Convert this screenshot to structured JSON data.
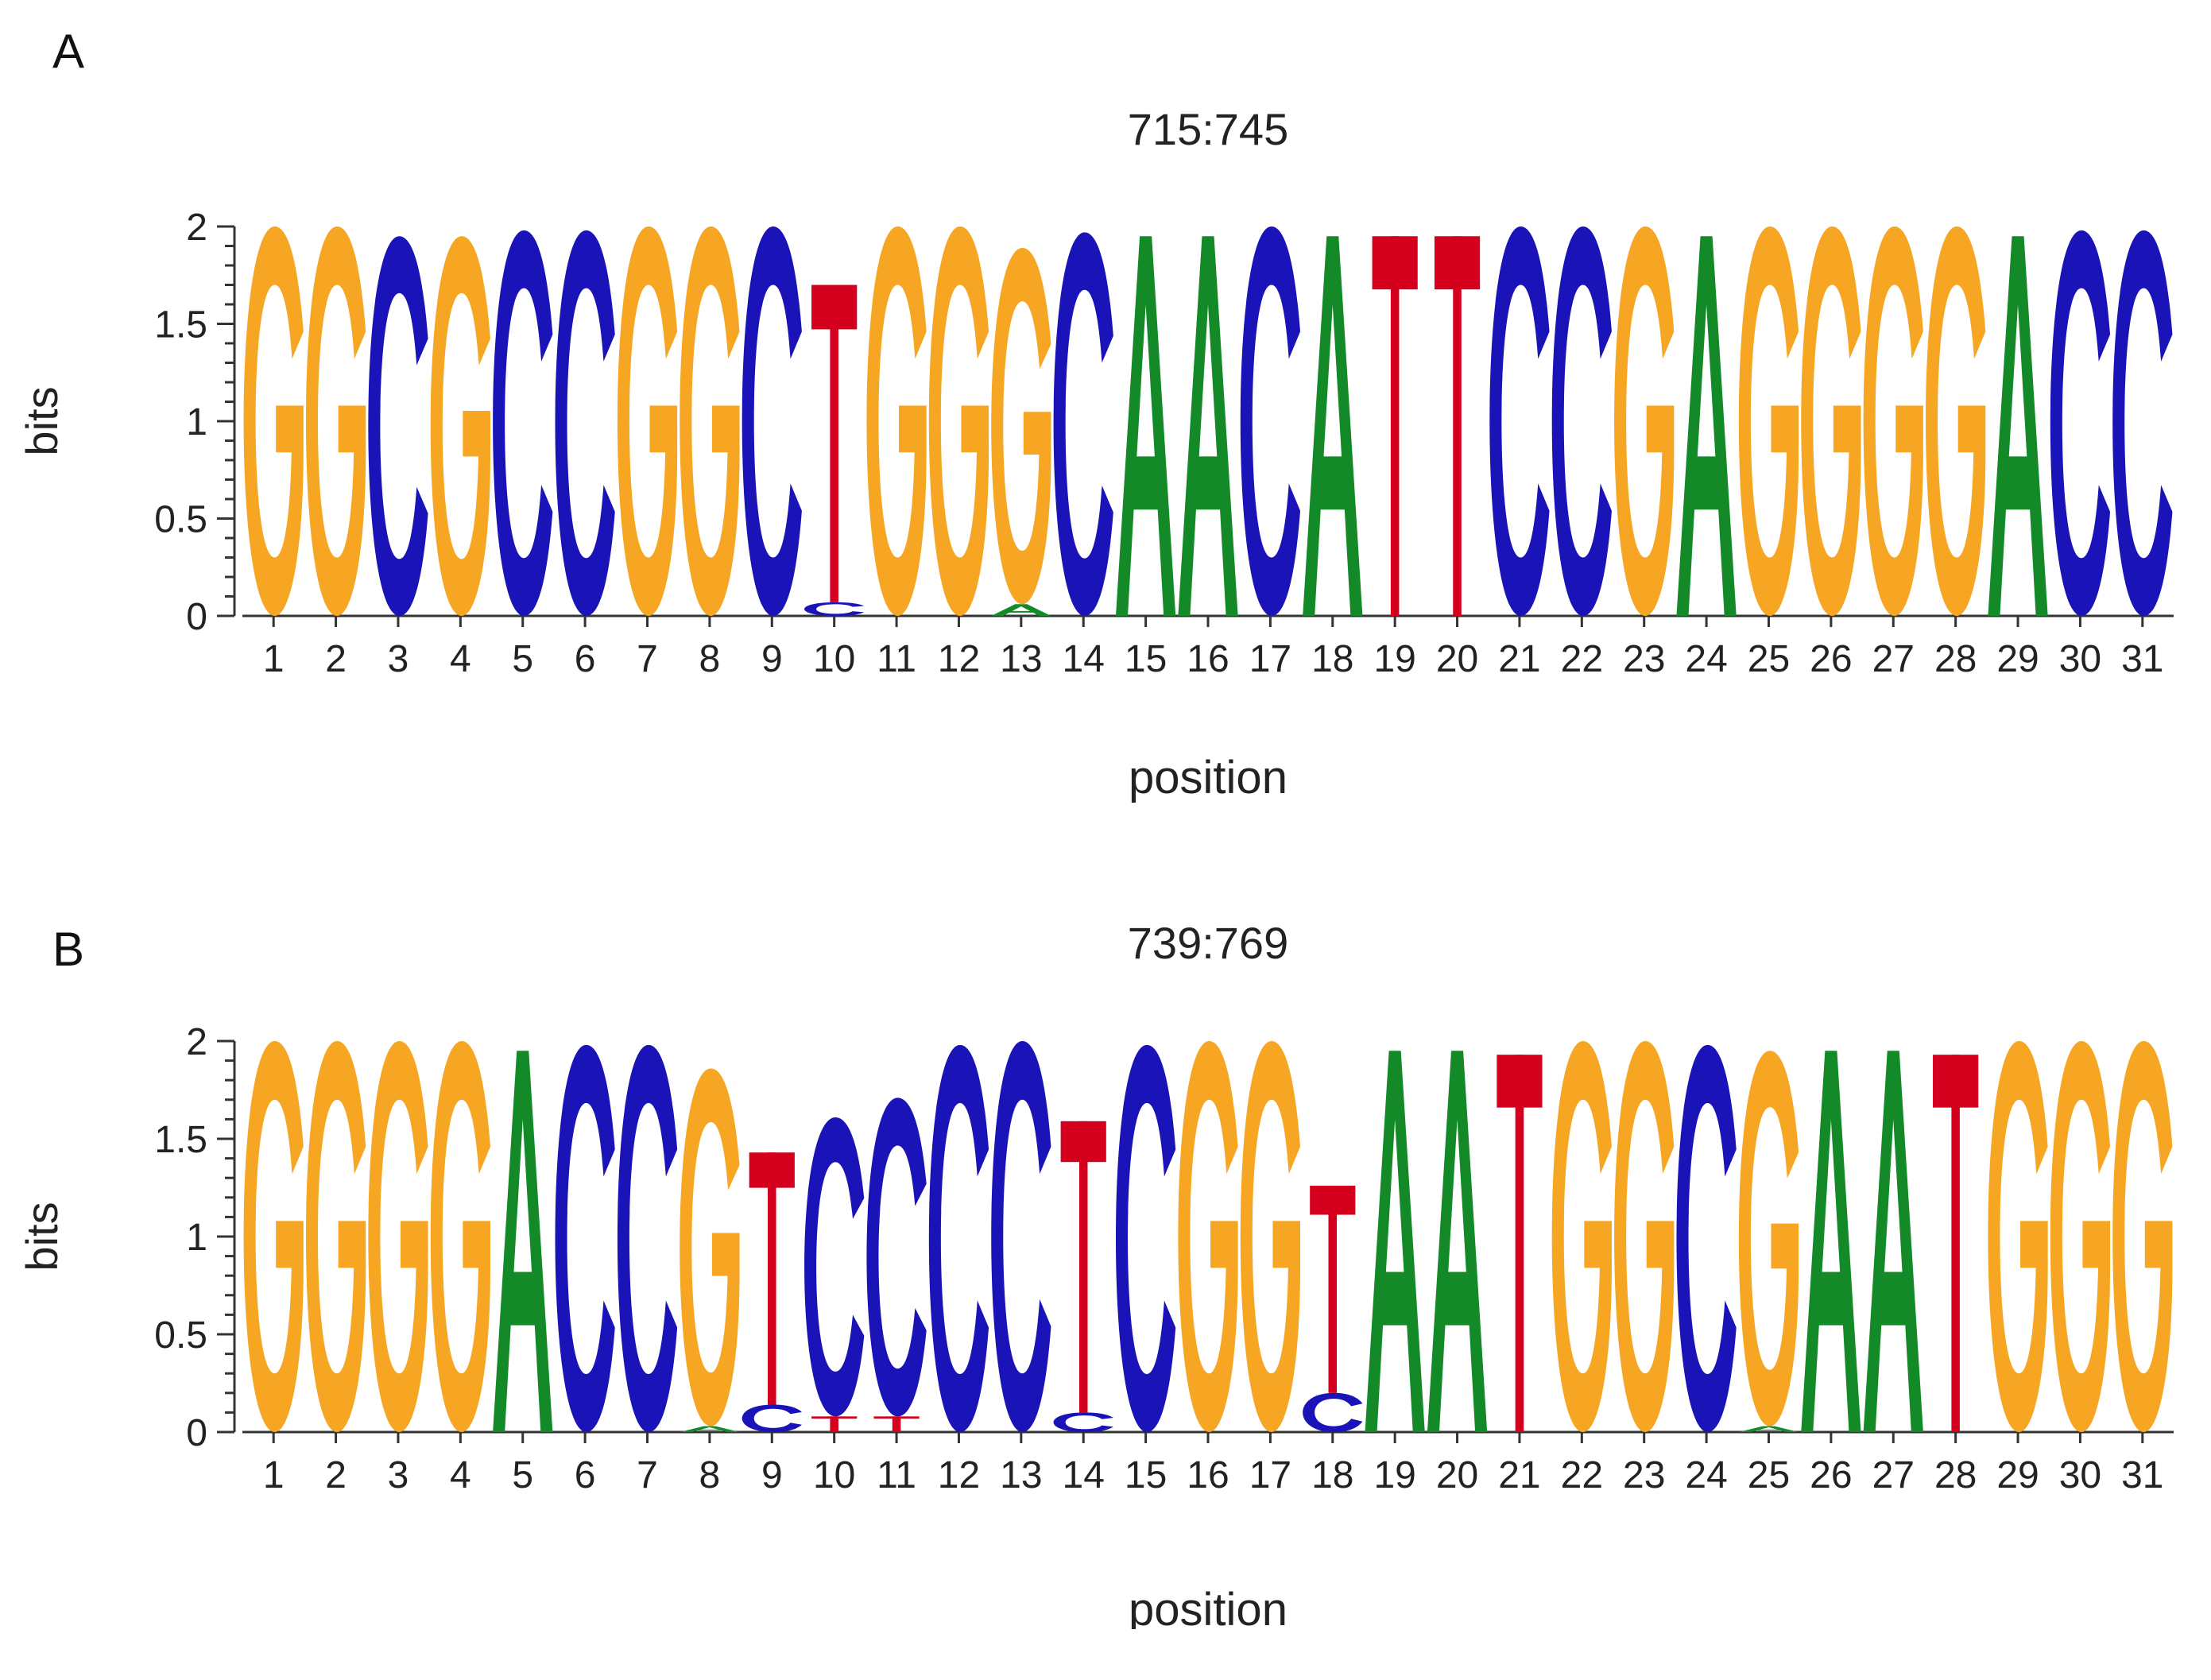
{
  "colors": {
    "A": "#138A27",
    "C": "#1A14B8",
    "G": "#F6A623",
    "T": "#D4001D",
    "axis": "#333333"
  },
  "chart_data": [
    {
      "type": "sequence-logo",
      "panel_label": "A",
      "title": "715:745",
      "xlabel": "position",
      "ylabel": "bits",
      "ylim": [
        0,
        2
      ],
      "yticks": [
        "0",
        "0.5",
        "1",
        "1.5",
        "2"
      ],
      "positions": [
        "1",
        "2",
        "3",
        "4",
        "5",
        "6",
        "7",
        "8",
        "9",
        "10",
        "11",
        "12",
        "13",
        "14",
        "15",
        "16",
        "17",
        "18",
        "19",
        "20",
        "21",
        "22",
        "23",
        "24",
        "25",
        "26",
        "27",
        "28",
        "29",
        "30",
        "31"
      ],
      "columns": [
        [
          {
            "base": "G",
            "bits": 2.0
          }
        ],
        [
          {
            "base": "G",
            "bits": 2.0
          }
        ],
        [
          {
            "base": "C",
            "bits": 1.95
          }
        ],
        [
          {
            "base": "G",
            "bits": 1.95
          }
        ],
        [
          {
            "base": "C",
            "bits": 1.98
          }
        ],
        [
          {
            "base": "C",
            "bits": 1.98
          }
        ],
        [
          {
            "base": "G",
            "bits": 2.0
          }
        ],
        [
          {
            "base": "G",
            "bits": 2.0
          }
        ],
        [
          {
            "base": "C",
            "bits": 2.0
          }
        ],
        [
          {
            "base": "C",
            "bits": 0.07
          },
          {
            "base": "T",
            "bits": 1.63
          }
        ],
        [
          {
            "base": "G",
            "bits": 2.0
          }
        ],
        [
          {
            "base": "G",
            "bits": 2.0
          }
        ],
        [
          {
            "base": "A",
            "bits": 0.06
          },
          {
            "base": "G",
            "bits": 1.83
          }
        ],
        [
          {
            "base": "C",
            "bits": 1.97
          }
        ],
        [
          {
            "base": "A",
            "bits": 1.95
          }
        ],
        [
          {
            "base": "A",
            "bits": 1.95
          }
        ],
        [
          {
            "base": "C",
            "bits": 2.0
          }
        ],
        [
          {
            "base": "A",
            "bits": 1.95
          }
        ],
        [
          {
            "base": "T",
            "bits": 1.95
          }
        ],
        [
          {
            "base": "T",
            "bits": 1.95
          }
        ],
        [
          {
            "base": "C",
            "bits": 2.0
          }
        ],
        [
          {
            "base": "C",
            "bits": 2.0
          }
        ],
        [
          {
            "base": "G",
            "bits": 2.0
          }
        ],
        [
          {
            "base": "A",
            "bits": 1.95
          }
        ],
        [
          {
            "base": "G",
            "bits": 2.0
          }
        ],
        [
          {
            "base": "G",
            "bits": 2.0
          }
        ],
        [
          {
            "base": "G",
            "bits": 2.0
          }
        ],
        [
          {
            "base": "G",
            "bits": 2.0
          }
        ],
        [
          {
            "base": "A",
            "bits": 1.95
          }
        ],
        [
          {
            "base": "C",
            "bits": 1.98
          }
        ],
        [
          {
            "base": "C",
            "bits": 1.98
          }
        ]
      ]
    },
    {
      "type": "sequence-logo",
      "panel_label": "B",
      "title": "739:769",
      "xlabel": "position",
      "ylabel": "bits",
      "ylim": [
        0,
        2
      ],
      "yticks": [
        "0",
        "0.5",
        "1",
        "1.5",
        "2"
      ],
      "positions": [
        "1",
        "2",
        "3",
        "4",
        "5",
        "6",
        "7",
        "8",
        "9",
        "10",
        "11",
        "12",
        "13",
        "14",
        "15",
        "16",
        "17",
        "18",
        "19",
        "20",
        "21",
        "22",
        "23",
        "24",
        "25",
        "26",
        "27",
        "28",
        "29",
        "30",
        "31"
      ],
      "columns": [
        [
          {
            "base": "G",
            "bits": 2.0
          }
        ],
        [
          {
            "base": "G",
            "bits": 2.0
          }
        ],
        [
          {
            "base": "G",
            "bits": 2.0
          }
        ],
        [
          {
            "base": "G",
            "bits": 2.0
          }
        ],
        [
          {
            "base": "A",
            "bits": 1.95
          }
        ],
        [
          {
            "base": "C",
            "bits": 1.98
          }
        ],
        [
          {
            "base": "C",
            "bits": 1.98
          }
        ],
        [
          {
            "base": "A",
            "bits": 0.03
          },
          {
            "base": "G",
            "bits": 1.83
          }
        ],
        [
          {
            "base": "C",
            "bits": 0.14
          },
          {
            "base": "T",
            "bits": 1.29
          }
        ],
        [
          {
            "base": "T",
            "bits": 0.08
          },
          {
            "base": "C",
            "bits": 1.53
          }
        ],
        [
          {
            "base": "T",
            "bits": 0.08
          },
          {
            "base": "C",
            "bits": 1.63
          }
        ],
        [
          {
            "base": "C",
            "bits": 1.98
          }
        ],
        [
          {
            "base": "C",
            "bits": 2.0
          }
        ],
        [
          {
            "base": "C",
            "bits": 0.1
          },
          {
            "base": "T",
            "bits": 1.49
          }
        ],
        [
          {
            "base": "C",
            "bits": 1.98
          }
        ],
        [
          {
            "base": "G",
            "bits": 2.0
          }
        ],
        [
          {
            "base": "G",
            "bits": 2.0
          }
        ],
        [
          {
            "base": "C",
            "bits": 0.2
          },
          {
            "base": "T",
            "bits": 1.06
          }
        ],
        [
          {
            "base": "A",
            "bits": 1.95
          }
        ],
        [
          {
            "base": "A",
            "bits": 1.95
          }
        ],
        [
          {
            "base": "T",
            "bits": 1.93
          }
        ],
        [
          {
            "base": "G",
            "bits": 2.0
          }
        ],
        [
          {
            "base": "G",
            "bits": 2.0
          }
        ],
        [
          {
            "base": "C",
            "bits": 1.98
          }
        ],
        [
          {
            "base": "A",
            "bits": 0.03
          },
          {
            "base": "G",
            "bits": 1.92
          }
        ],
        [
          {
            "base": "A",
            "bits": 1.95
          }
        ],
        [
          {
            "base": "A",
            "bits": 1.95
          }
        ],
        [
          {
            "base": "T",
            "bits": 1.93
          }
        ],
        [
          {
            "base": "G",
            "bits": 2.0
          }
        ],
        [
          {
            "base": "G",
            "bits": 2.0
          }
        ],
        [
          {
            "base": "G",
            "bits": 2.0
          }
        ]
      ]
    }
  ]
}
